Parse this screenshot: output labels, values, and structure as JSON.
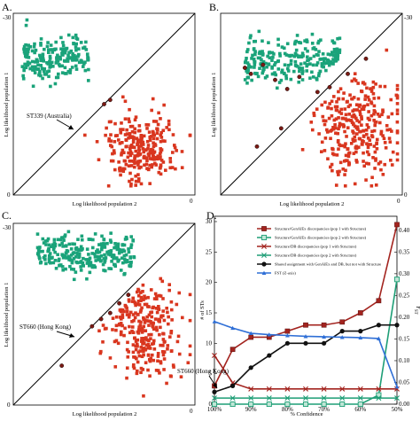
{
  "chart_data": [
    {
      "panel": "A.",
      "type": "scatter",
      "xlabel": "Log likelihood population 2",
      "ylabel": "Log likelihood population 1",
      "xlim": [
        -30,
        0
      ],
      "ylim": [
        -30,
        0
      ],
      "x_ticks": [
        "0"
      ],
      "y_ticks": [
        "-30",
        "0"
      ],
      "diagonal": true,
      "colors": {
        "pop1": "#1aa37a",
        "pop2": "#d9361f",
        "marker": "#7a1a14",
        "line": "#000000"
      },
      "clusters": [
        {
          "name": "pop1",
          "center": [
            -23,
            -7.5
          ],
          "spread": [
            5.5,
            3.0
          ],
          "n": 200
        },
        {
          "name": "pop2",
          "center": [
            -9,
            -22
          ],
          "spread": [
            4.5,
            4.0
          ],
          "n": 260
        }
      ],
      "points": [
        {
          "x": -15,
          "y": -15
        },
        {
          "x": -14,
          "y": -14.3
        }
      ],
      "annotation": {
        "text": "ST339 (Australia)",
        "x": -15,
        "y": -15
      }
    },
    {
      "panel": "B.",
      "type": "scatter",
      "xlabel": "Log likelihood population 2",
      "ylabel": "Log likelihood population 1",
      "xlim": [
        -30,
        0
      ],
      "ylim": [
        -30,
        0
      ],
      "x_ticks": [
        "0"
      ],
      "y_ticks": [
        "-30",
        "0"
      ],
      "diagonal": true,
      "colors": {
        "pop1": "#1aa37a",
        "pop2": "#d9361f",
        "marker": "#7a1a14",
        "line": "#000000"
      },
      "clusters": [
        {
          "name": "pop1",
          "center": [
            -18,
            -8
          ],
          "spread": [
            8,
            3.2
          ],
          "n": 240
        },
        {
          "name": "pop2",
          "center": [
            -7,
            -19
          ],
          "spread": [
            5,
            6.5
          ],
          "n": 300
        }
      ],
      "points": [
        {
          "x": -26,
          "y": -9
        },
        {
          "x": -25,
          "y": -10
        },
        {
          "x": -23,
          "y": -8.5
        },
        {
          "x": -21,
          "y": -11
        },
        {
          "x": -19,
          "y": -12.5
        },
        {
          "x": -17,
          "y": -10.5
        },
        {
          "x": -14,
          "y": -13
        },
        {
          "x": -12,
          "y": -12.2
        },
        {
          "x": -9,
          "y": -10
        },
        {
          "x": -6,
          "y": -7.5
        },
        {
          "x": -24,
          "y": -22
        },
        {
          "x": -20,
          "y": -19
        }
      ]
    },
    {
      "panel": "C.",
      "type": "scatter",
      "xlabel": "Log likelihood population 2",
      "ylabel": "Log likelihood population 1",
      "xlim": [
        -30,
        0
      ],
      "ylim": [
        -30,
        0
      ],
      "x_ticks": [
        "0"
      ],
      "y_ticks": [
        "-30",
        "0"
      ],
      "diagonal": true,
      "colors": {
        "pop1": "#1aa37a",
        "pop2": "#d9361f",
        "marker": "#7a1a14",
        "line": "#000000"
      },
      "clusters": [
        {
          "name": "pop1",
          "center": [
            -18,
            -5
          ],
          "spread": [
            8,
            2.6
          ],
          "n": 260
        },
        {
          "name": "pop2",
          "center": [
            -8,
            -18
          ],
          "spread": [
            4.5,
            5.5
          ],
          "n": 280
        }
      ],
      "points": [
        {
          "x": -17,
          "y": -17
        },
        {
          "x": -15.5,
          "y": -15.8
        },
        {
          "x": -14,
          "y": -14.8
        },
        {
          "x": -12.5,
          "y": -13.2
        },
        {
          "x": -11,
          "y": -11.8
        },
        {
          "x": -22,
          "y": -23.5
        }
      ],
      "annotation": {
        "text": "ST660 (Hong Kong)",
        "x": -17,
        "y": -17
      }
    },
    {
      "panel": "D.",
      "type": "line",
      "xlabel": "% Confidence",
      "ylabel": "# of STs",
      "y2label": "FST (Z-axis)",
      "categories": [
        "100%",
        "90%",
        "80%",
        "70%",
        "60%",
        "50%"
      ],
      "ylim": [
        0,
        30
      ],
      "y2lim": [
        0,
        0.42
      ],
      "y_ticks": [
        "0",
        "5",
        "10",
        "15",
        "20",
        "25",
        "30"
      ],
      "y2_ticks": [
        "0.00",
        "0.05",
        "0.10",
        "0.15",
        "0.20",
        "0.25",
        "0.30",
        "0.35",
        "0.40"
      ],
      "legend_position": "top-right",
      "annotation": {
        "text": "ST660 (Hong Kong)"
      },
      "x_values": [
        100,
        95,
        90,
        85,
        80,
        75,
        70,
        65,
        60,
        55,
        50
      ],
      "series": [
        {
          "name": "Structure/GenAlEx discrepancies (pop 1 with Structure)",
          "color": "#a3241f",
          "marker": "square",
          "axis": "y",
          "values": [
            3,
            9,
            11,
            11,
            12,
            13,
            13,
            13.5,
            15,
            17,
            29.5
          ]
        },
        {
          "name": "Structure/GenAlEx discrepancies (pop 2 with Structure)",
          "color": "#1e9e76",
          "marker": "square-open",
          "axis": "y",
          "values": [
            0,
            0,
            0,
            0,
            0,
            0,
            0,
            0,
            0,
            1.5,
            20.5
          ]
        },
        {
          "name": "Structure/DB discrepancies (pop 1 with Structure)",
          "color": "#a3241f",
          "marker": "x",
          "axis": "y",
          "values": [
            8,
            3.5,
            2.5,
            2.5,
            2.5,
            2.5,
            2.5,
            2.5,
            2.5,
            2.5,
            2.5
          ]
        },
        {
          "name": "Structure/DB discrepancies (pop 2 with Structure)",
          "color": "#1e9e76",
          "marker": "x",
          "axis": "y",
          "values": [
            1,
            1,
            1,
            1,
            1,
            1,
            1,
            1,
            1,
            1,
            1
          ]
        },
        {
          "name": "Shared assignment with GenAlEx and DB, but not with Structure",
          "color": "#111111",
          "marker": "circle",
          "axis": "y",
          "values": [
            2,
            3,
            6,
            8,
            10,
            10,
            10,
            12,
            12,
            13,
            13
          ]
        },
        {
          "name": "FST (Z-axis)",
          "color": "#2f6fd6",
          "marker": "triangle",
          "axis": "y2",
          "values": [
            0.19,
            0.175,
            0.163,
            0.16,
            0.158,
            0.156,
            0.155,
            0.154,
            0.153,
            0.151,
            0.04
          ]
        }
      ]
    }
  ]
}
